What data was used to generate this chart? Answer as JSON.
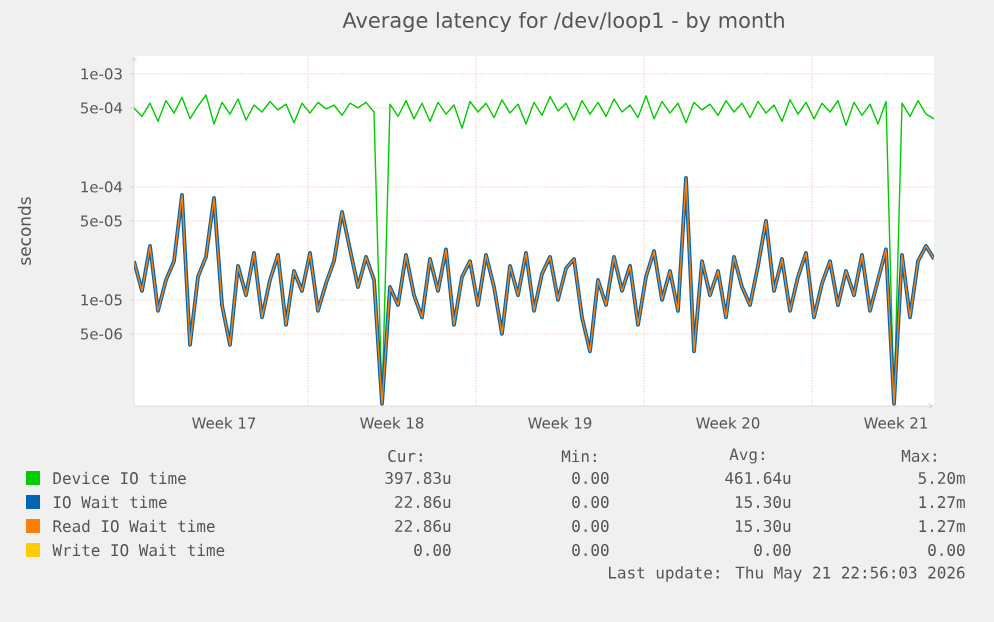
{
  "chart_data": {
    "type": "line",
    "title": "Average latency for /dev/loop1 - by month",
    "ylabel": "seconds",
    "log": true,
    "grid": true,
    "legend": "bottom",
    "marker": "none",
    "line_style": "solid",
    "xlim": [
      "2026-04-18T15:00",
      "2026-05-21T23:00"
    ],
    "xticks": [
      {
        "value": "2026-04-22T09:00",
        "label": "Week 17"
      },
      {
        "value": "2026-04-25T21:00",
        "label": null
      },
      {
        "value": "2026-04-29T09:00",
        "label": "Week 18"
      },
      {
        "value": "2026-05-02T21:00",
        "label": null
      },
      {
        "value": "2026-05-06T09:00",
        "label": "Week 19"
      },
      {
        "value": "2026-05-09T21:00",
        "label": null
      },
      {
        "value": "2026-05-13T09:00",
        "label": "Week 20"
      },
      {
        "value": "2026-05-16T21:00",
        "label": null
      },
      {
        "value": "2026-05-20T09:00",
        "label": "Week 21"
      }
    ],
    "ylim": [
      1.15e-06,
      0.00144
    ],
    "yticks": [
      {
        "value": 5e-06,
        "label": "5e-06"
      },
      {
        "value": 1e-05,
        "label": "1e-05"
      },
      {
        "value": 5e-05,
        "label": "5e-05"
      },
      {
        "value": 0.0001,
        "label": "1e-04"
      },
      {
        "value": 0.0005,
        "label": "5e-04"
      },
      {
        "value": 0.001,
        "label": "1e-03"
      }
    ],
    "x": [
      "2026-04-18T15:00",
      "2026-04-18T23:00",
      "2026-04-19T07:00",
      "2026-04-19T15:00",
      "2026-04-19T23:00",
      "2026-04-20T07:00",
      "2026-04-20T15:00",
      "2026-04-20T23:00",
      "2026-04-21T07:00",
      "2026-04-21T15:00",
      "2026-04-21T23:00",
      "2026-04-22T07:00",
      "2026-04-22T15:00",
      "2026-04-22T23:00",
      "2026-04-23T07:00",
      "2026-04-23T15:00",
      "2026-04-23T23:00",
      "2026-04-24T07:00",
      "2026-04-24T15:00",
      "2026-04-24T23:00",
      "2026-04-25T07:00",
      "2026-04-25T15:00",
      "2026-04-25T23:00",
      "2026-04-26T07:00",
      "2026-04-26T15:00",
      "2026-04-26T23:00",
      "2026-04-27T07:00",
      "2026-04-27T15:00",
      "2026-04-27T23:00",
      "2026-04-28T07:00",
      "2026-04-28T15:00",
      "2026-04-28T23:00",
      "2026-04-29T07:00",
      "2026-04-29T15:00",
      "2026-04-29T23:00",
      "2026-04-30T07:00",
      "2026-04-30T15:00",
      "2026-04-30T23:00",
      "2026-05-01T07:00",
      "2026-05-01T15:00",
      "2026-05-01T23:00",
      "2026-05-02T07:00",
      "2026-05-02T15:00",
      "2026-05-02T23:00",
      "2026-05-03T07:00",
      "2026-05-03T15:00",
      "2026-05-03T23:00",
      "2026-05-04T07:00",
      "2026-05-04T15:00",
      "2026-05-04T23:00",
      "2026-05-05T07:00",
      "2026-05-05T15:00",
      "2026-05-05T23:00",
      "2026-05-06T07:00",
      "2026-05-06T15:00",
      "2026-05-06T23:00",
      "2026-05-07T07:00",
      "2026-05-07T15:00",
      "2026-05-07T23:00",
      "2026-05-08T07:00",
      "2026-05-08T15:00",
      "2026-05-08T23:00",
      "2026-05-09T07:00",
      "2026-05-09T15:00",
      "2026-05-09T23:00",
      "2026-05-10T07:00",
      "2026-05-10T15:00",
      "2026-05-10T23:00",
      "2026-05-11T07:00",
      "2026-05-11T15:00",
      "2026-05-11T23:00",
      "2026-05-12T07:00",
      "2026-05-12T15:00",
      "2026-05-12T23:00",
      "2026-05-13T07:00",
      "2026-05-13T15:00",
      "2026-05-13T23:00",
      "2026-05-14T07:00",
      "2026-05-14T15:00",
      "2026-05-14T23:00",
      "2026-05-15T07:00",
      "2026-05-15T15:00",
      "2026-05-15T23:00",
      "2026-05-16T07:00",
      "2026-05-16T15:00",
      "2026-05-16T23:00",
      "2026-05-17T07:00",
      "2026-05-17T15:00",
      "2026-05-17T23:00",
      "2026-05-18T07:00",
      "2026-05-18T15:00",
      "2026-05-18T23:00",
      "2026-05-19T07:00",
      "2026-05-19T15:00",
      "2026-05-19T23:00",
      "2026-05-20T07:00",
      "2026-05-20T15:00",
      "2026-05-20T23:00",
      "2026-05-21T07:00",
      "2026-05-21T15:00",
      "2026-05-21T23:00"
    ],
    "series": [
      {
        "name": "Device IO time",
        "color": "#00cc00",
        "values": [
          0.0005,
          0.00042,
          0.00055,
          0.00038,
          0.00058,
          0.00045,
          0.00062,
          0.0004,
          0.00052,
          0.00065,
          0.00036,
          0.00056,
          0.00044,
          0.0006,
          0.00039,
          0.00053,
          0.00046,
          0.00057,
          0.00048,
          0.00054,
          0.00037,
          0.00055,
          0.00045,
          0.00056,
          0.00049,
          0.00053,
          0.00043,
          0.00055,
          0.0005,
          0.00056,
          0.00046,
          1.2e-06,
          0.00054,
          0.00042,
          0.00058,
          0.0004,
          0.00055,
          0.00038,
          0.00056,
          0.00044,
          0.00053,
          0.00033,
          0.00057,
          0.00046,
          0.00055,
          0.00041,
          0.00059,
          0.00045,
          0.00054,
          0.00036,
          0.00056,
          0.00043,
          0.00063,
          0.00047,
          0.00055,
          0.00039,
          0.00058,
          0.00044,
          0.00056,
          0.00042,
          0.0006,
          0.00046,
          0.00053,
          0.00041,
          0.00064,
          0.0004,
          0.00057,
          0.00045,
          0.00055,
          0.00037,
          0.00056,
          0.00048,
          0.00054,
          0.00043,
          0.00058,
          0.00046,
          0.00055,
          0.00041,
          0.00057,
          0.00045,
          0.00053,
          0.00038,
          0.00059,
          0.00044,
          0.00056,
          0.0004,
          0.00055,
          0.00046,
          0.00058,
          0.00035,
          0.00056,
          0.00043,
          0.00054,
          0.00036,
          0.00057,
          1.2e-06,
          0.00055,
          0.00042,
          0.00058,
          0.00044,
          0.0004
        ]
      },
      {
        "name": "IO Wait time",
        "color": "#0066b3",
        "values": [
          2.2e-05,
          1.2e-05,
          3e-05,
          8e-06,
          1.5e-05,
          2.2e-05,
          8.5e-05,
          4e-06,
          1.6e-05,
          2.4e-05,
          8e-05,
          9e-06,
          4e-06,
          2e-05,
          1.1e-05,
          2.6e-05,
          7e-06,
          1.5e-05,
          2.5e-05,
          6e-06,
          1.8e-05,
          1.2e-05,
          2.6e-05,
          8e-06,
          1.4e-05,
          2.2e-05,
          6e-05,
          2.8e-05,
          1.3e-05,
          2.4e-05,
          1.5e-05,
          1.2e-06,
          1.3e-05,
          9e-06,
          2.5e-05,
          1.1e-05,
          7e-06,
          2.3e-05,
          1.2e-05,
          2.8e-05,
          6e-06,
          1.6e-05,
          2.2e-05,
          9e-06,
          2.5e-05,
          1.3e-05,
          5e-06,
          2e-05,
          1.1e-05,
          2.6e-05,
          8e-06,
          1.7e-05,
          2.4e-05,
          1e-05,
          1.9e-05,
          2.3e-05,
          7e-06,
          3.5e-06,
          1.5e-05,
          9e-06,
          2.4e-05,
          1.2e-05,
          2e-05,
          6e-06,
          1.6e-05,
          2.7e-05,
          1e-05,
          1.8e-05,
          8e-06,
          0.00012,
          3.5e-06,
          2.2e-05,
          1.1e-05,
          1.8e-05,
          7e-06,
          2.4e-05,
          1.3e-05,
          9e-06,
          2e-05,
          5e-05,
          1.2e-05,
          2.3e-05,
          8e-06,
          1.6e-05,
          2.6e-05,
          7e-06,
          1.4e-05,
          2.2e-05,
          9e-06,
          1.8e-05,
          1.1e-05,
          2.5e-05,
          8e-06,
          1.5e-05,
          2.8e-05,
          1.2e-06,
          2.5e-05,
          7e-06,
          2.2e-05,
          3e-05,
          2.3e-05
        ]
      },
      {
        "name": "Read IO Wait time",
        "color": "#ff8000",
        "values": [
          2.2e-05,
          1.2e-05,
          3e-05,
          8e-06,
          1.5e-05,
          2.2e-05,
          8.5e-05,
          4e-06,
          1.6e-05,
          2.4e-05,
          8e-05,
          9e-06,
          4e-06,
          2e-05,
          1.1e-05,
          2.6e-05,
          7e-06,
          1.5e-05,
          2.5e-05,
          6e-06,
          1.8e-05,
          1.2e-05,
          2.6e-05,
          8e-06,
          1.4e-05,
          2.2e-05,
          6e-05,
          2.8e-05,
          1.3e-05,
          2.4e-05,
          1.5e-05,
          1.2e-06,
          1.3e-05,
          9e-06,
          2.5e-05,
          1.1e-05,
          7e-06,
          2.3e-05,
          1.2e-05,
          2.8e-05,
          6e-06,
          1.6e-05,
          2.2e-05,
          9e-06,
          2.5e-05,
          1.3e-05,
          5e-06,
          2e-05,
          1.1e-05,
          2.6e-05,
          8e-06,
          1.7e-05,
          2.4e-05,
          1e-05,
          1.9e-05,
          2.3e-05,
          7e-06,
          3.5e-06,
          1.5e-05,
          9e-06,
          2.4e-05,
          1.2e-05,
          2e-05,
          6e-06,
          1.6e-05,
          2.7e-05,
          1e-05,
          1.8e-05,
          8e-06,
          0.00012,
          3.5e-06,
          2.2e-05,
          1.1e-05,
          1.8e-05,
          7e-06,
          2.4e-05,
          1.3e-05,
          9e-06,
          2e-05,
          5e-05,
          1.2e-05,
          2.3e-05,
          8e-06,
          1.6e-05,
          2.6e-05,
          7e-06,
          1.4e-05,
          2.2e-05,
          9e-06,
          1.8e-05,
          1.1e-05,
          2.5e-05,
          8e-06,
          1.5e-05,
          2.8e-05,
          1.2e-06,
          2.5e-05,
          7e-06,
          2.2e-05,
          3e-05,
          2.3e-05
        ]
      },
      {
        "name": "Write IO Wait time",
        "color": "#ffcc00",
        "values": [
          null,
          null,
          null,
          null,
          null,
          null,
          null,
          null,
          null,
          null,
          null,
          null,
          null,
          null,
          null,
          null,
          null,
          null,
          null,
          null,
          null,
          null,
          null,
          null,
          null,
          null,
          null,
          null,
          null,
          null,
          null,
          null,
          null,
          null,
          null,
          null,
          null,
          null,
          null,
          null,
          null,
          null,
          null,
          null,
          null,
          null,
          null,
          null,
          null,
          null,
          null,
          null,
          null,
          null,
          null,
          null,
          null,
          null,
          null,
          null,
          null,
          null,
          null,
          null,
          null,
          null,
          null,
          null,
          null,
          null,
          null,
          null,
          null,
          null,
          null,
          null,
          null,
          null,
          null,
          null,
          null,
          null,
          null,
          null,
          null,
          null,
          null,
          null,
          null,
          null,
          null,
          null,
          null,
          null,
          null,
          null,
          null,
          null,
          null,
          null,
          null
        ]
      }
    ],
    "annotations": [
      "Cur:",
      "Min:",
      "Avg:",
      "Max:",
      "397.83u",
      "0.00",
      "461.64u",
      "5.20m",
      "22.86u",
      "0.00",
      "15.30u",
      "1.27m",
      "22.86u",
      "0.00",
      "15.30u",
      "1.27m",
      "0.00",
      "0.00",
      "0.00",
      "0.00",
      "Last update: Thu May 21 22:56:03 2026"
    ]
  }
}
